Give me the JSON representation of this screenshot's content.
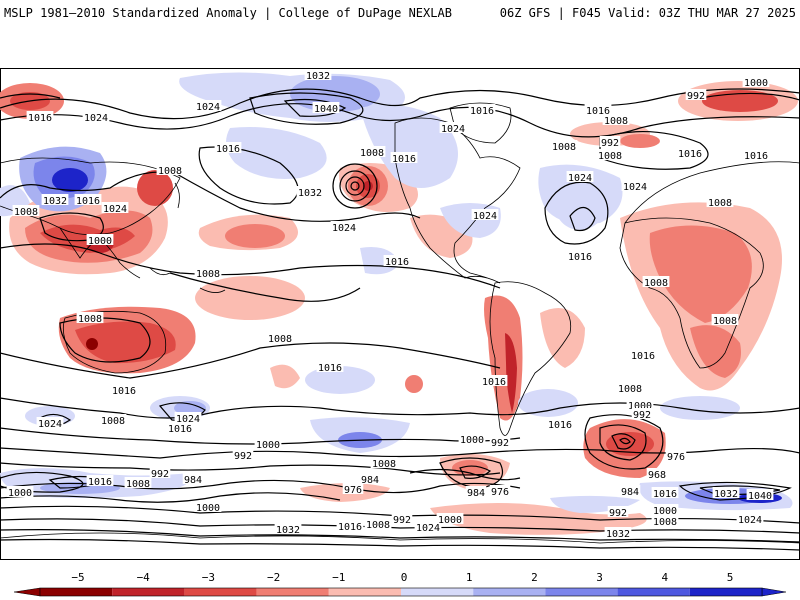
{
  "header": {
    "left": "MSLP 1981–2010 Standardized Anomaly | College of DuPage NEXLAB",
    "right": "06Z GFS | F045 Valid: 03Z THU MAR 27 2025"
  },
  "colors": {
    "neg5": "#8b0000",
    "neg4": "#c0232a",
    "neg3": "#de4a45",
    "neg2": "#f07e73",
    "neg1": "#fbbcb1",
    "zero": "#ffffff",
    "pos1": "#d6daf9",
    "pos2": "#a9b1f2",
    "pos3": "#7c85eb",
    "pos4": "#4e58e0",
    "pos5": "#1d24c9",
    "contour": "#000000",
    "border": "#000000"
  },
  "isobar_labels": [
    {
      "text": "1016",
      "lx": 40,
      "ly": 117
    },
    {
      "text": "1024",
      "lx": 96,
      "ly": 117
    },
    {
      "text": "1024",
      "lx": 208,
      "ly": 106
    },
    {
      "text": "1032",
      "lx": 318,
      "ly": 75
    },
    {
      "text": "1040",
      "lx": 326,
      "ly": 108
    },
    {
      "text": "1016",
      "lx": 228,
      "ly": 148
    },
    {
      "text": "1008",
      "lx": 170,
      "ly": 170
    },
    {
      "text": "1008",
      "lx": 26,
      "ly": 211
    },
    {
      "text": "1032",
      "lx": 55,
      "ly": 200
    },
    {
      "text": "1016",
      "lx": 88,
      "ly": 200
    },
    {
      "text": "1024",
      "lx": 115,
      "ly": 208
    },
    {
      "text": "1000",
      "lx": 100,
      "ly": 240
    },
    {
      "text": "1032",
      "lx": 310,
      "ly": 192
    },
    {
      "text": "1024",
      "lx": 344,
      "ly": 227
    },
    {
      "text": "1008",
      "lx": 372,
      "ly": 152
    },
    {
      "text": "1016",
      "lx": 404,
      "ly": 158
    },
    {
      "text": "1016",
      "lx": 482,
      "ly": 110
    },
    {
      "text": "1024",
      "lx": 453,
      "ly": 128
    },
    {
      "text": "1024",
      "lx": 485,
      "ly": 215
    },
    {
      "text": "1016",
      "lx": 397,
      "ly": 261
    },
    {
      "text": "1008",
      "lx": 208,
      "ly": 273
    },
    {
      "text": "1008",
      "lx": 90,
      "ly": 318
    },
    {
      "text": "1008",
      "lx": 280,
      "ly": 338
    },
    {
      "text": "1016",
      "lx": 124,
      "ly": 390
    },
    {
      "text": "1016",
      "lx": 330,
      "ly": 367
    },
    {
      "text": "1016",
      "lx": 494,
      "ly": 381
    },
    {
      "text": "1024",
      "lx": 50,
      "ly": 423
    },
    {
      "text": "1008",
      "lx": 113,
      "ly": 420
    },
    {
      "text": "1024",
      "lx": 188,
      "ly": 418
    },
    {
      "text": "1016",
      "lx": 180,
      "ly": 428
    },
    {
      "text": "1000",
      "lx": 268,
      "ly": 444
    },
    {
      "text": "992",
      "lx": 243,
      "ly": 455
    },
    {
      "text": "1008",
      "lx": 384,
      "ly": 463
    },
    {
      "text": "1000",
      "lx": 472,
      "ly": 439
    },
    {
      "text": "992",
      "lx": 500,
      "ly": 442
    },
    {
      "text": "1016",
      "lx": 560,
      "ly": 424
    },
    {
      "text": "1024",
      "lx": 580,
      "ly": 177
    },
    {
      "text": "1016",
      "lx": 580,
      "ly": 256
    },
    {
      "text": "1008",
      "lx": 564,
      "ly": 146
    },
    {
      "text": "1016",
      "lx": 598,
      "ly": 110
    },
    {
      "text": "1008",
      "lx": 616,
      "ly": 120
    },
    {
      "text": "992",
      "lx": 610,
      "ly": 142
    },
    {
      "text": "1008",
      "lx": 610,
      "ly": 155
    },
    {
      "text": "992",
      "lx": 696,
      "ly": 95
    },
    {
      "text": "1000",
      "lx": 756,
      "ly": 82
    },
    {
      "text": "1016",
      "lx": 690,
      "ly": 153
    },
    {
      "text": "1016",
      "lx": 756,
      "ly": 155
    },
    {
      "text": "1024",
      "lx": 635,
      "ly": 186
    },
    {
      "text": "1008",
      "lx": 720,
      "ly": 202
    },
    {
      "text": "1008",
      "lx": 656,
      "ly": 282
    },
    {
      "text": "1008",
      "lx": 725,
      "ly": 320
    },
    {
      "text": "1016",
      "lx": 643,
      "ly": 355
    },
    {
      "text": "1008",
      "lx": 630,
      "ly": 388
    },
    {
      "text": "1000",
      "lx": 640,
      "ly": 405
    },
    {
      "text": "992",
      "lx": 642,
      "ly": 414
    },
    {
      "text": "976",
      "lx": 676,
      "ly": 456
    },
    {
      "text": "968",
      "lx": 657,
      "ly": 474
    },
    {
      "text": "984",
      "lx": 630,
      "ly": 491
    },
    {
      "text": "1016",
      "lx": 665,
      "ly": 493
    },
    {
      "text": "1032",
      "lx": 726,
      "ly": 493
    },
    {
      "text": "1040",
      "lx": 760,
      "ly": 495
    },
    {
      "text": "1000",
      "lx": 665,
      "ly": 510
    },
    {
      "text": "992",
      "lx": 618,
      "ly": 512
    },
    {
      "text": "1008",
      "lx": 665,
      "ly": 521
    },
    {
      "text": "1024",
      "lx": 750,
      "ly": 519
    },
    {
      "text": "1032",
      "lx": 618,
      "ly": 533
    },
    {
      "text": "984",
      "lx": 370,
      "ly": 479
    },
    {
      "text": "976",
      "lx": 353,
      "ly": 489
    },
    {
      "text": "984",
      "lx": 476,
      "ly": 492
    },
    {
      "text": "976",
      "lx": 500,
      "ly": 491
    },
    {
      "text": "1000",
      "lx": 20,
      "ly": 492
    },
    {
      "text": "1016",
      "lx": 100,
      "ly": 481
    },
    {
      "text": "1008",
      "lx": 138,
      "ly": 483
    },
    {
      "text": "992",
      "lx": 160,
      "ly": 473
    },
    {
      "text": "984",
      "lx": 193,
      "ly": 479
    },
    {
      "text": "1000",
      "lx": 208,
      "ly": 507
    },
    {
      "text": "1032",
      "lx": 288,
      "ly": 529
    },
    {
      "text": "1016",
      "lx": 350,
      "ly": 526
    },
    {
      "text": "1008",
      "lx": 378,
      "ly": 524
    },
    {
      "text": "992",
      "lx": 402,
      "ly": 519
    },
    {
      "text": "1024",
      "lx": 428,
      "ly": 527
    },
    {
      "text": "1000",
      "lx": 450,
      "ly": 519
    }
  ],
  "colorbar": {
    "ticks": [
      "−5",
      "−4",
      "−3",
      "−2",
      "−1",
      "0",
      "1",
      "2",
      "3",
      "4",
      "5"
    ]
  }
}
